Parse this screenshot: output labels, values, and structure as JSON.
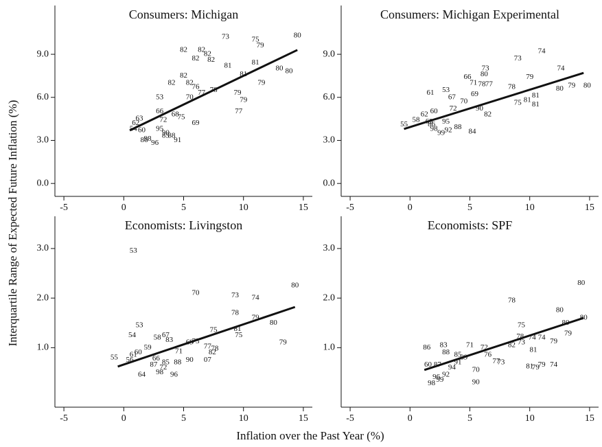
{
  "ylabel": "Interquartile Range of Expected Future Inflation (%)",
  "xlabel": "Inflation over the Past Year (%)",
  "chart_data": [
    {
      "type": "scatter",
      "title": "Consumers: Michigan",
      "xlim": [
        -5.75,
        15.75
      ],
      "xticks": [
        -5,
        0,
        5,
        10,
        15
      ],
      "ylim": [
        -0.9,
        12.4
      ],
      "yticks": [
        {
          "value": 0,
          "label": "0.0"
        },
        {
          "value": 3,
          "label": "3.0"
        },
        {
          "value": 6,
          "label": "6.0"
        },
        {
          "value": 9,
          "label": "9.0"
        }
      ],
      "labels": [
        "73",
        "82",
        "82",
        "82",
        "82",
        "82",
        "81",
        "81",
        "75",
        "79",
        "80",
        "81",
        "80",
        "79",
        "79",
        "80",
        "82",
        "82",
        "82",
        "76",
        "78",
        "77",
        "53",
        "70",
        "77",
        "75",
        "66",
        "63",
        "62",
        "54",
        "60",
        "90",
        "98",
        "86",
        "88",
        "91",
        "96",
        "68",
        "69",
        "72",
        "95",
        "85",
        "79"
      ],
      "x": [
        8.5,
        5,
        6.5,
        7,
        6,
        7.3,
        8.7,
        10,
        11,
        11.4,
        14.5,
        11,
        13.8,
        11.5,
        10,
        13,
        5,
        4,
        5.5,
        6,
        7.5,
        6.5,
        3,
        5.5,
        9.6,
        4.8,
        3,
        1.3,
        1,
        0.8,
        1.5,
        3.5,
        2,
        1.7,
        4,
        4.5,
        2.6,
        4.3,
        6,
        3.3,
        3,
        3.5,
        9.5
      ],
      "y": [
        10.2,
        9.3,
        9.3,
        9.0,
        8.7,
        8.6,
        8.2,
        7.6,
        10,
        9.6,
        10.3,
        8.4,
        7.8,
        7.0,
        5.8,
        8.0,
        7.5,
        7.0,
        7.0,
        6.7,
        6.5,
        6.3,
        6.0,
        6.0,
        5.0,
        4.6,
        5.0,
        4.5,
        4.2,
        3.8,
        3.7,
        3.5,
        3.1,
        3.0,
        3.3,
        3.0,
        2.8,
        4.8,
        4.2,
        4.4,
        3.8,
        3.3,
        6.3
      ],
      "fit": {
        "x": [
          0.5,
          14.5
        ],
        "y": [
          3.7,
          9.3
        ]
      }
    },
    {
      "type": "scatter",
      "title": "Consumers: Michigan Experimental",
      "xlim": [
        -5.75,
        15.75
      ],
      "xticks": [
        -5,
        0,
        5,
        10,
        15
      ],
      "ylim": [
        -0.9,
        12.4
      ],
      "yticks": [
        {
          "value": 0,
          "label": "0.0"
        },
        {
          "value": 3,
          "label": "3.0"
        },
        {
          "value": 6,
          "label": "6.0"
        },
        {
          "value": 9,
          "label": "9.0"
        }
      ],
      "labels": [
        "73",
        "73",
        "74",
        "74",
        "79",
        "80",
        "79",
        "80",
        "78",
        "81",
        "81",
        "75",
        "81",
        "78",
        "71",
        "80",
        "77",
        "66",
        "61",
        "53",
        "67",
        "69",
        "82",
        "90",
        "55",
        "58",
        "62",
        "60",
        "63",
        "72",
        "84",
        "86",
        "95",
        "98",
        "88",
        "99",
        "92",
        "70"
      ],
      "x": [
        6.3,
        9,
        11,
        12.6,
        10,
        14.8,
        13.5,
        12.5,
        8.5,
        10.5,
        10.5,
        9,
        9.8,
        6,
        5.3,
        6.2,
        6.6,
        4.8,
        1.7,
        3,
        3.5,
        5.4,
        6.5,
        5.8,
        -0.5,
        0.5,
        1.2,
        2,
        1.6,
        3.6,
        5.2,
        1.8,
        3,
        2,
        4,
        2.6,
        3.2,
        4.5
      ],
      "y": [
        8.0,
        8.7,
        9.2,
        8.0,
        7.4,
        6.8,
        6.8,
        6.6,
        6.7,
        6.1,
        5.5,
        5.6,
        5.8,
        6.9,
        7.0,
        7.6,
        6.9,
        7.4,
        6.3,
        6.5,
        6.0,
        6.2,
        4.8,
        5.2,
        4.1,
        4.4,
        4.8,
        5.0,
        4.3,
        5.2,
        3.6,
        4.1,
        4.3,
        3.8,
        3.9,
        3.5,
        3.7,
        5.7
      ],
      "fit": {
        "x": [
          -0.5,
          14.5
        ],
        "y": [
          3.8,
          7.7
        ]
      }
    },
    {
      "type": "scatter",
      "title": "Economists: Livingston",
      "xlim": [
        -5.75,
        15.75
      ],
      "xticks": [
        -5,
        0,
        5,
        10,
        15
      ],
      "ylim": [
        -0.2,
        3.65
      ],
      "yticks": [
        {
          "value": 1,
          "label": "1.0"
        },
        {
          "value": 2,
          "label": "2.0"
        },
        {
          "value": 3,
          "label": "3.0"
        }
      ],
      "labels": [
        "53",
        "53",
        "54",
        "70",
        "73",
        "74",
        "80",
        "78",
        "79",
        "80",
        "75",
        "81",
        "75",
        "79",
        "58",
        "67",
        "83",
        "69",
        "73",
        "77",
        "78",
        "82",
        "55",
        "56",
        "59",
        "60",
        "61",
        "66",
        "85",
        "90",
        "07",
        "98",
        "64",
        "96",
        "87",
        "71",
        "72",
        "88"
      ],
      "x": [
        0.8,
        1.3,
        0.7,
        6,
        9.3,
        11,
        14.3,
        9.3,
        11,
        12.5,
        7.5,
        9.5,
        9.6,
        13.3,
        2.8,
        3.5,
        3.8,
        5.5,
        6,
        7,
        7.6,
        7.4,
        -0.8,
        0.5,
        2,
        1.2,
        0.8,
        2.7,
        3.5,
        5.5,
        7,
        3,
        1.5,
        4.2,
        2.5,
        4.6,
        3.3,
        4.5
      ],
      "y": [
        2.95,
        1.45,
        1.25,
        2.1,
        2.05,
        2.0,
        2.25,
        1.7,
        1.6,
        1.5,
        1.35,
        1.37,
        1.25,
        1.1,
        1.2,
        1.25,
        1.15,
        1.1,
        1.12,
        1.02,
        0.98,
        0.9,
        0.8,
        0.75,
        1.0,
        0.9,
        0.85,
        0.78,
        0.7,
        0.75,
        0.75,
        0.5,
        0.45,
        0.45,
        0.65,
        0.92,
        0.6,
        0.7
      ],
      "fit": {
        "x": [
          -0.5,
          14.3
        ],
        "y": [
          0.62,
          1.82
        ]
      }
    },
    {
      "type": "scatter",
      "title": "Economists: SPF",
      "xlim": [
        -5.75,
        15.75
      ],
      "xticks": [
        -5,
        0,
        5,
        10,
        15
      ],
      "ylim": [
        -0.2,
        3.65
      ],
      "yticks": [
        {
          "value": 1,
          "label": "1.0"
        },
        {
          "value": 2,
          "label": "2.0"
        },
        {
          "value": 3,
          "label": "3.0"
        }
      ],
      "labels": [
        "80",
        "78",
        "80",
        "80",
        "80",
        "75",
        "78",
        "74",
        "74",
        "79",
        "79",
        "73",
        "81",
        "74",
        "79",
        "81",
        "79",
        "73",
        "77",
        "70",
        "90",
        "86",
        "83",
        "88",
        "71",
        "72",
        "82",
        "85",
        "96",
        "98",
        "99",
        "92",
        "87",
        "60",
        "94",
        "91",
        "89",
        "76"
      ],
      "x": [
        14.3,
        8.5,
        12.5,
        14.5,
        13,
        9.3,
        9.2,
        10.2,
        11,
        12,
        13.2,
        9.3,
        10.3,
        12,
        11,
        10,
        10.5,
        7.6,
        7.2,
        5.5,
        5.5,
        1.4,
        2.8,
        3,
        5,
        6.2,
        8.5,
        4,
        2.2,
        1.8,
        2.5,
        3,
        2.3,
        1.5,
        3.5,
        4,
        4.5,
        6.5
      ],
      "y": [
        2.3,
        1.95,
        1.75,
        1.6,
        1.5,
        1.45,
        1.22,
        1.2,
        1.2,
        1.12,
        1.28,
        1.1,
        0.95,
        0.65,
        0.65,
        0.62,
        0.6,
        0.7,
        0.72,
        0.55,
        0.3,
        1.0,
        1.05,
        0.9,
        1.05,
        1.0,
        1.05,
        0.85,
        0.4,
        0.28,
        0.35,
        0.45,
        0.65,
        0.65,
        0.6,
        0.7,
        0.8,
        0.85
      ],
      "fit": {
        "x": [
          1.2,
          14.5
        ],
        "y": [
          0.55,
          1.6
        ]
      }
    }
  ]
}
